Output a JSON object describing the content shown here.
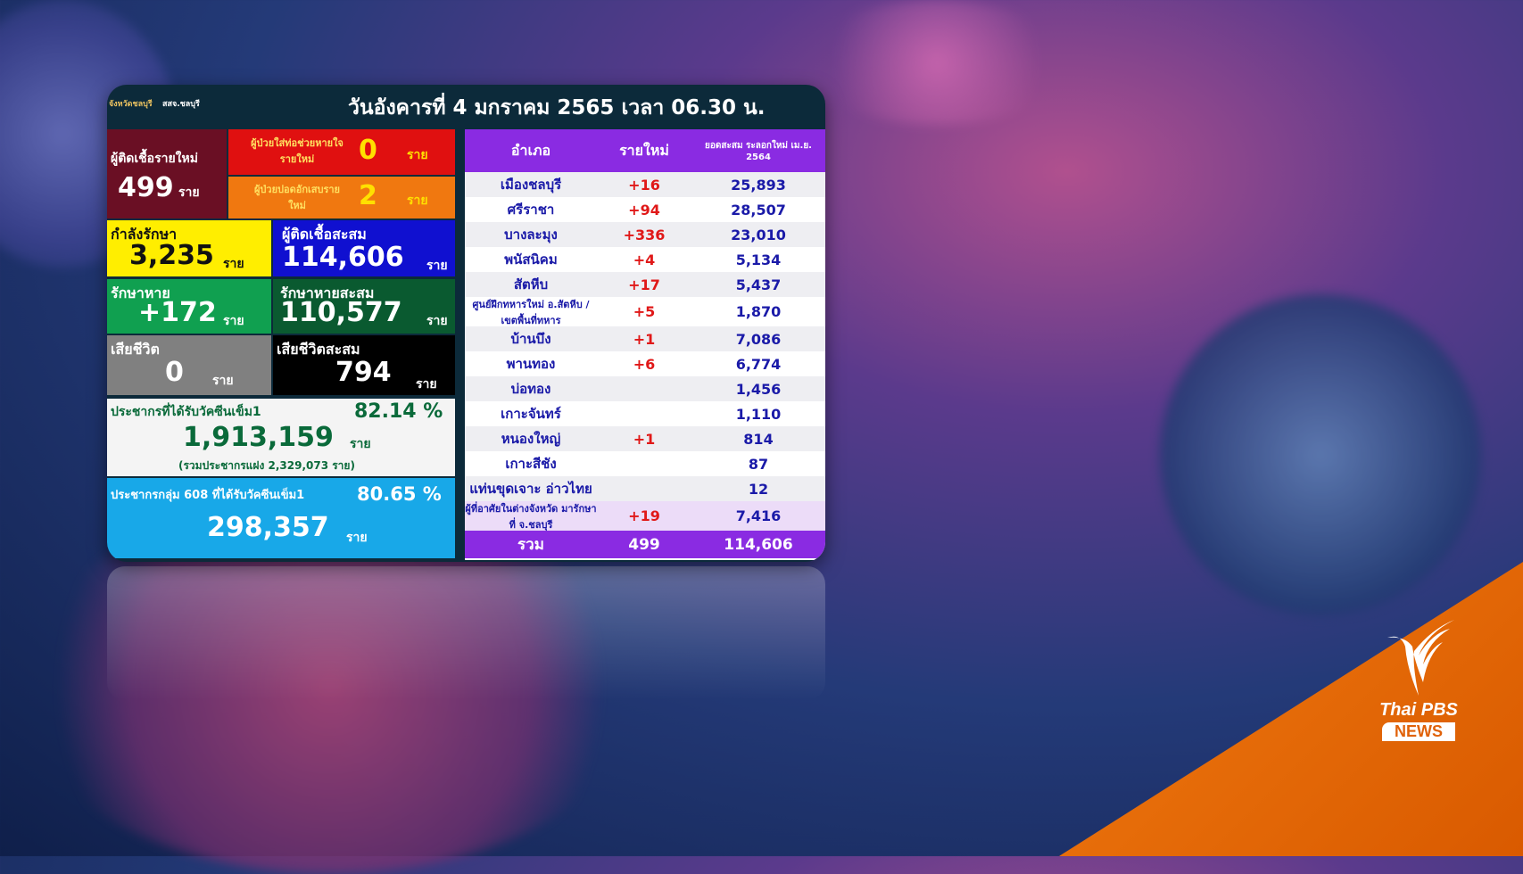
{
  "header": {
    "date": "วันอังคารที่ 4 มกราคม 2565 เวลา 06.30 น.",
    "org_left": "จังหวัดชลบุรี",
    "org_right": "สสจ.ชลบุรี"
  },
  "unit": "ราย",
  "stats": {
    "new_cases": {
      "label": "ผู้ติดเชื้อรายใหม่",
      "value": "499"
    },
    "intubated": {
      "label": "ผู้ป่วยใส่ท่อช่วยหายใจรายใหม่",
      "value": "0"
    },
    "pneumonia": {
      "label": "ผู้ป่วยปอดอักเสบรายใหม่",
      "value": "2"
    },
    "treating": {
      "label": "กำลังรักษา",
      "value": "3,235"
    },
    "cumulative": {
      "label": "ผู้ติดเชื้อสะสม",
      "value": "114,606"
    },
    "recovered": {
      "label": "รักษาหาย",
      "value": "+172"
    },
    "recovered_total": {
      "label": "รักษาหายสะสม",
      "value": "110,577"
    },
    "deaths": {
      "label": "เสียชีวิต",
      "value": "0"
    },
    "deaths_total": {
      "label": "เสียชีวิตสะสม",
      "value": "794"
    },
    "vaccine": {
      "label": "ประชากรที่ได้รับวัคซีนเข็ม1",
      "percent": "82.14 %",
      "value": "1,913,159",
      "note": "(รวมประชากรแฝง  2,329,073  ราย)"
    },
    "vaccine608": {
      "label": "ประชากรกลุ่ม 608 ที่ได้รับวัคซีนเข็ม1",
      "percent": "80.65 %",
      "value": "298,357"
    }
  },
  "table": {
    "headers": [
      "อำเภอ",
      "รายใหม่",
      "ยอดสะสม ระลอกใหม่ เม.ย. 2564"
    ],
    "rows": [
      {
        "district": "เมืองชลบุรี",
        "new": "+16",
        "total": "25,893"
      },
      {
        "district": "ศรีราชา",
        "new": "+94",
        "total": "28,507"
      },
      {
        "district": "บางละมุง",
        "new": "+336",
        "total": "23,010"
      },
      {
        "district": "พนัสนิคม",
        "new": "+4",
        "total": "5,134"
      },
      {
        "district": "สัตหีบ",
        "new": "+17",
        "total": "5,437"
      },
      {
        "district": "ศูนย์ฝึกทหารใหม่ อ.สัตหีบ /เขตพื้นที่ทหาร",
        "new": "+5",
        "total": "1,870"
      },
      {
        "district": "บ้านบึง",
        "new": "+1",
        "total": "7,086"
      },
      {
        "district": "พานทอง",
        "new": "+6",
        "total": "6,774"
      },
      {
        "district": "บ่อทอง",
        "new": "",
        "total": "1,456"
      },
      {
        "district": "เกาะจันทร์",
        "new": "",
        "total": "1,110"
      },
      {
        "district": "หนองใหญ่",
        "new": "+1",
        "total": "814"
      },
      {
        "district": "เกาะสีชัง",
        "new": "",
        "total": "87"
      },
      {
        "district": "แท่นขุดเจาะ อ่าวไทย",
        "new": "",
        "total": "12"
      },
      {
        "district": "ผู้ที่อาศัยในต่างจังหวัด มารักษาที่ จ.ชลบุรี",
        "new": "+19",
        "total": "7,416"
      }
    ],
    "total": {
      "label": "รวม",
      "new": "499",
      "total": "114,606"
    }
  },
  "logo": {
    "brand": "Thai PBS",
    "sub": "NEWS"
  },
  "colors": {
    "purple": "#8a2be2",
    "orange": "#e86a0a",
    "red": "#e01818",
    "blue_text": "#1a1aa8"
  }
}
